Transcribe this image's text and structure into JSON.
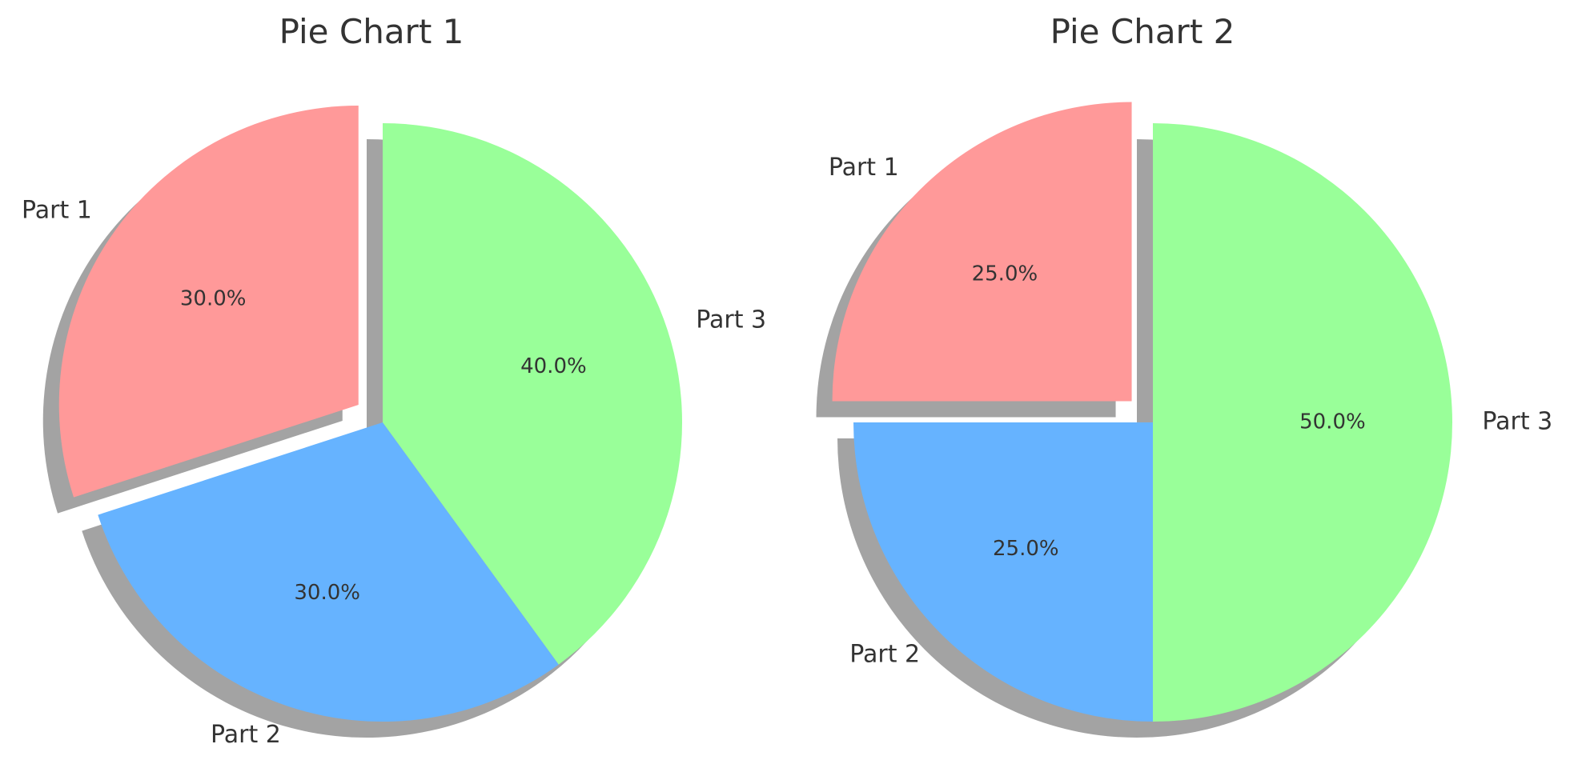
{
  "chart_data": [
    {
      "type": "pie",
      "title": "Pie Chart 1",
      "labels": [
        "Part 1",
        "Part 2",
        "Part 3"
      ],
      "values": [
        30,
        30,
        40
      ],
      "percent_labels": [
        "30.0%",
        "30.0%",
        "40.0%"
      ],
      "colors": [
        "#ff9999",
        "#66b3ff",
        "#99ff99"
      ],
      "exploded": [
        "Part 1"
      ],
      "shadow": true,
      "start_angle": 90,
      "direction": "counterclockwise"
    },
    {
      "type": "pie",
      "title": "Pie Chart 2",
      "labels": [
        "Part 1",
        "Part 2",
        "Part 3"
      ],
      "values": [
        25,
        25,
        50
      ],
      "percent_labels": [
        "25.0%",
        "25.0%",
        "50.0%"
      ],
      "colors": [
        "#ff9999",
        "#66b3ff",
        "#99ff99"
      ],
      "exploded": [
        "Part 1"
      ],
      "shadow": true,
      "start_angle": 90,
      "direction": "counterclockwise"
    }
  ]
}
